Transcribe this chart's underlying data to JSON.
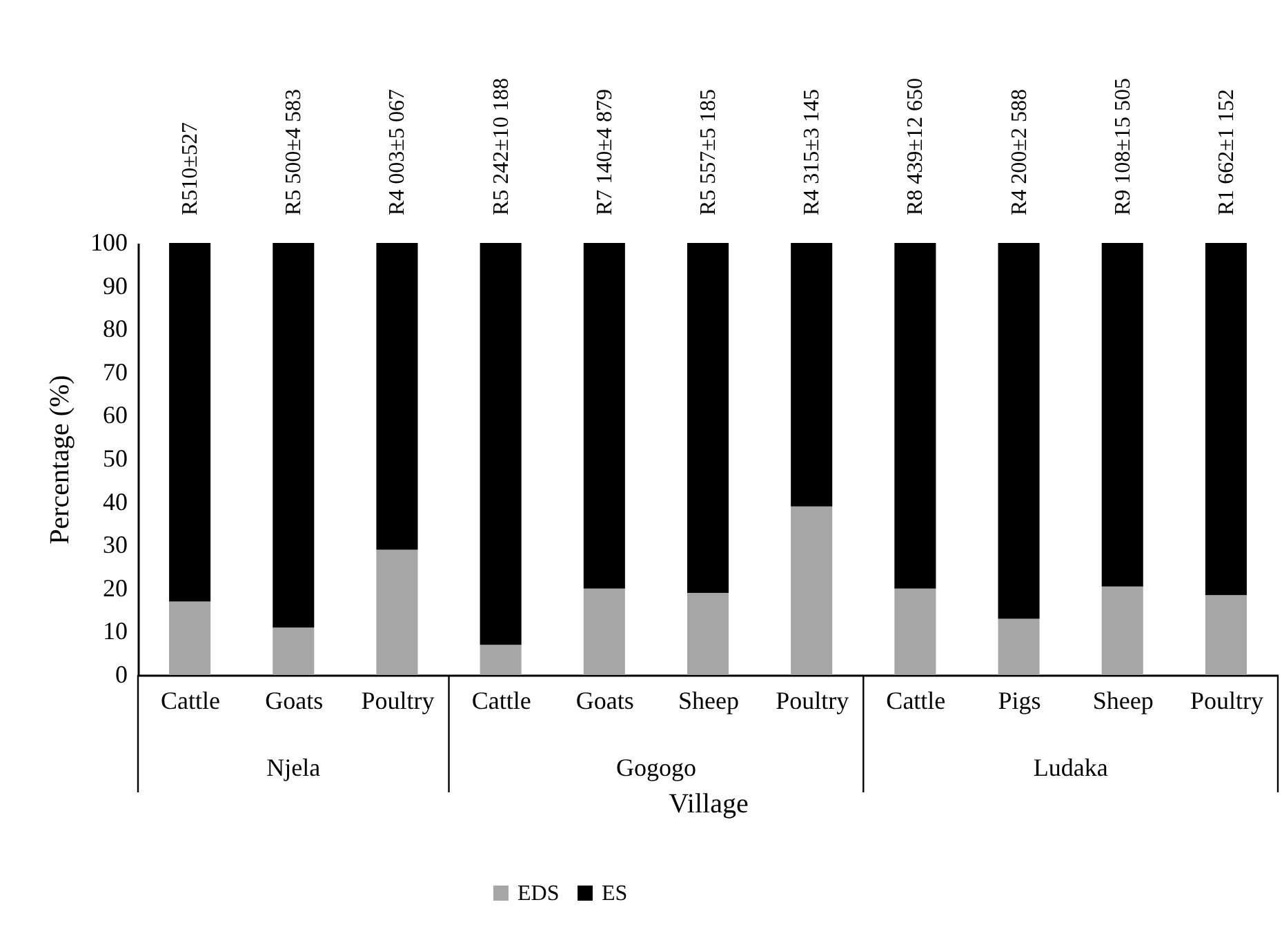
{
  "chart_data": {
    "type": "bar",
    "stacked": true,
    "xlabel": "Village",
    "ylabel": "Percentage (%)",
    "categories": [
      "Cattle",
      "Goats",
      "Poultry",
      "Cattle",
      "Goats",
      "Sheep",
      "Poultry",
      "Cattle",
      "Pigs",
      "Sheep",
      "Poultry"
    ],
    "series": [
      {
        "name": "EDS",
        "color": "#a6a6a6",
        "values": [
          17,
          11,
          29,
          7,
          20,
          19,
          39,
          20,
          13,
          20.5,
          18.5
        ]
      },
      {
        "name": "ES",
        "color": "#000000",
        "values": [
          83,
          89,
          71,
          93,
          80,
          81,
          61,
          80,
          87,
          79.5,
          81.5
        ]
      }
    ],
    "ylim": [
      0,
      100
    ],
    "yticks": [
      0,
      10,
      20,
      30,
      40,
      50,
      60,
      70,
      80,
      90,
      100
    ],
    "grid": false,
    "legend": "bottom",
    "annotations": [
      "R510±527",
      "R5 500±4 583",
      "R4 003±5 067",
      "R5 242±10 188",
      "R7 140±4 879",
      "R5 557±5 185",
      "R4 315±3 145",
      "R8 439±12 650",
      "R4 200±2 588",
      "R9 108±15 505",
      "R1 662±1 152",
      "Njela",
      "Gogogo",
      "Ludaka"
    ]
  }
}
